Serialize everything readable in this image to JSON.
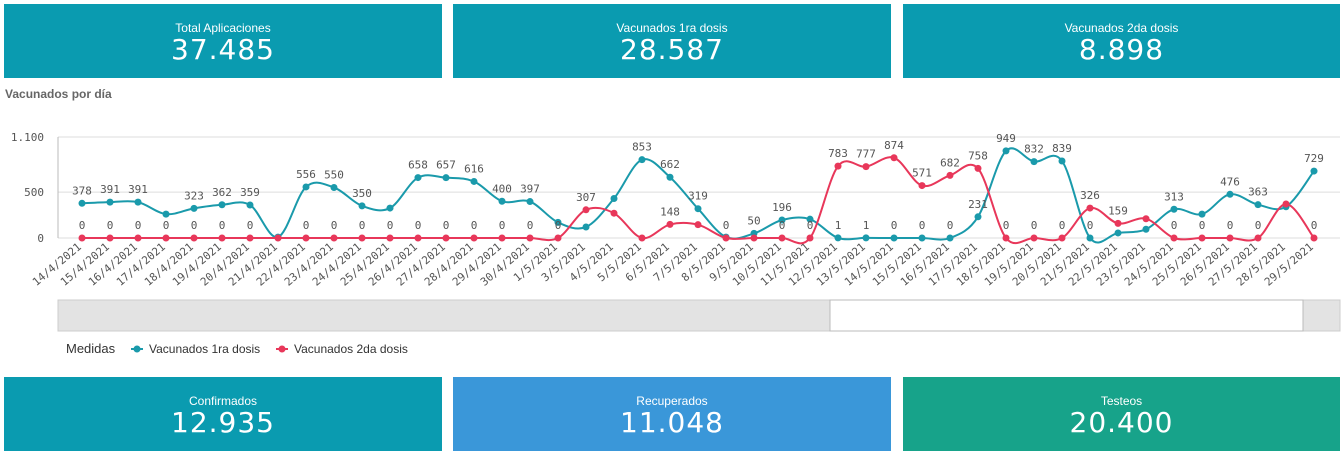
{
  "kpis_top": [
    {
      "label": "Total Aplicaciones",
      "value": "37.485"
    },
    {
      "label": "Vacunados 1ra dosis",
      "value": "28.587"
    },
    {
      "label": "Vacunados 2da dosis",
      "value": "8.898"
    }
  ],
  "chart_data": {
    "type": "line",
    "title": "Vacunados por día",
    "legend_title": "Medidas",
    "categories": [
      "14/4/2021",
      "15/4/2021",
      "16/4/2021",
      "17/4/2021",
      "18/4/2021",
      "19/4/2021",
      "20/4/2021",
      "21/4/2021",
      "22/4/2021",
      "23/4/2021",
      "24/4/2021",
      "25/4/2021",
      "26/4/2021",
      "27/4/2021",
      "28/4/2021",
      "29/4/2021",
      "30/4/2021",
      "1/5/2021",
      "3/5/2021",
      "4/5/2021",
      "5/5/2021",
      "6/5/2021",
      "7/5/2021",
      "8/5/2021",
      "9/5/2021",
      "10/5/2021",
      "11/5/2021",
      "12/5/2021",
      "13/5/2021",
      "14/5/2021",
      "15/5/2021",
      "16/5/2021",
      "17/5/2021",
      "18/5/2021",
      "19/5/2021",
      "20/5/2021",
      "21/5/2021",
      "22/5/2021",
      "23/5/2021",
      "24/5/2021",
      "25/5/2021",
      "26/5/2021",
      "27/5/2021",
      "28/5/2021",
      "29/5/2021"
    ],
    "series": [
      {
        "name": "Vacunados 1ra dosis",
        "color": "#1a9aab",
        "values": [
          378,
          391,
          391,
          260,
          323,
          362,
          359,
          10,
          556,
          550,
          350,
          326,
          658,
          657,
          616,
          400,
          397,
          170,
          120,
          430,
          853,
          662,
          319,
          10,
          50,
          196,
          205,
          1,
          1,
          0,
          0,
          0,
          231,
          949,
          832,
          839,
          0,
          55,
          95,
          313,
          260,
          476,
          363,
          340,
          729
        ],
        "value_labels": [
          "378",
          "391",
          "391",
          null,
          "323",
          "362",
          "359",
          null,
          "556",
          "550",
          "350",
          null,
          "658",
          "657",
          "616",
          "400",
          "397",
          null,
          null,
          null,
          "853",
          "662",
          "319",
          null,
          "50",
          "196",
          null,
          "1",
          "1",
          "0",
          "0",
          "0",
          "231",
          "949",
          "832",
          "839",
          "0",
          null,
          null,
          "313",
          null,
          "476",
          "363",
          null,
          "729"
        ]
      },
      {
        "name": "Vacunados 2da dosis",
        "color": "#e8375a",
        "values": [
          0,
          0,
          0,
          0,
          0,
          0,
          0,
          0,
          0,
          0,
          0,
          0,
          0,
          0,
          0,
          0,
          0,
          0,
          307,
          270,
          0,
          148,
          145,
          0,
          0,
          0,
          0,
          783,
          777,
          874,
          571,
          682,
          758,
          0,
          0,
          0,
          326,
          159,
          210,
          0,
          0,
          0,
          0,
          370,
          0
        ],
        "value_labels": [
          "0",
          "0",
          "0",
          "0",
          "0",
          "0",
          "0",
          null,
          "0",
          "0",
          "0",
          "0",
          "0",
          "0",
          "0",
          "0",
          "0",
          "0",
          "307",
          null,
          null,
          "148",
          null,
          "0",
          null,
          "0",
          "0",
          "783",
          "777",
          "874",
          "571",
          "682",
          "758",
          "0",
          "0",
          "0",
          "326",
          "159",
          null,
          "0",
          "0",
          "0",
          "0",
          null,
          "0"
        ]
      }
    ],
    "ylim": [
      0,
      1100
    ],
    "yticks": [
      0,
      500,
      {
        "value": 1100,
        "label": "1.100"
      }
    ],
    "grid": true
  },
  "kpis_bottom": [
    {
      "label": "Confirmados",
      "value": "12.935",
      "color": "#0a9bb0"
    },
    {
      "label": "Recuperados",
      "value": "11.048",
      "color": "#3a97d9"
    },
    {
      "label": "Testeos",
      "value": "20.400",
      "color": "#17a38a"
    }
  ]
}
